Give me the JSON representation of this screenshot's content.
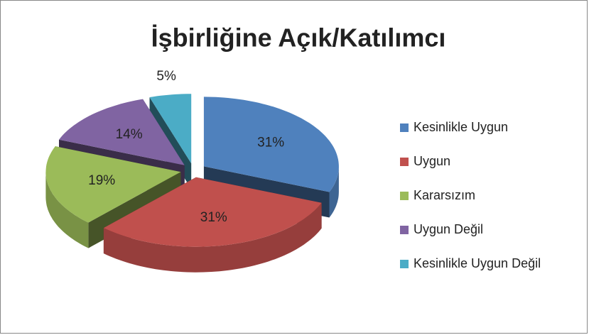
{
  "chart_data": {
    "type": "pie",
    "title": "İşbirliğine Açık/Katılımcı",
    "categories": [
      "Kesinlikle Uygun",
      "Uygun",
      "Kararsızım",
      "Uygun Değil",
      "Kesinlikle Uygun Değil"
    ],
    "values": [
      31,
      31,
      19,
      14,
      5
    ],
    "value_labels": [
      "31%",
      "31%",
      "19%",
      "14%",
      "5%"
    ],
    "colors": [
      "#4f81bd",
      "#c0504d",
      "#9bbb59",
      "#8064a2",
      "#4bacc6"
    ],
    "legend": "right"
  }
}
